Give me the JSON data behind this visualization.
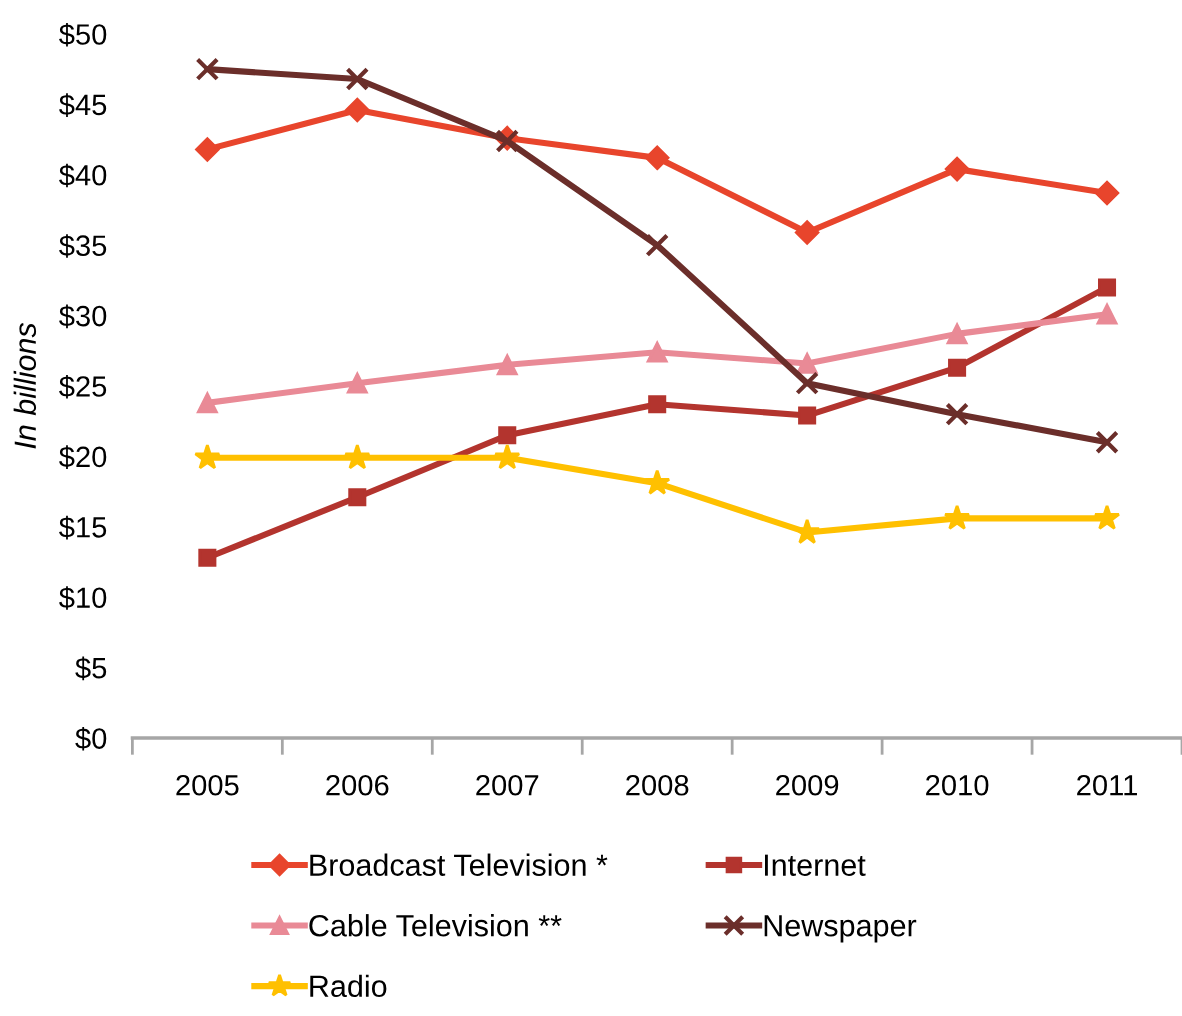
{
  "chart_data": {
    "type": "line",
    "ylabel": "In billions",
    "categories": [
      "2005",
      "2006",
      "2007",
      "2008",
      "2009",
      "2010",
      "2011"
    ],
    "ylim": [
      0,
      50
    ],
    "yticks": [
      {
        "value": 0,
        "label": "$0"
      },
      {
        "value": 5,
        "label": "$5"
      },
      {
        "value": 10,
        "label": "$10"
      },
      {
        "value": 15,
        "label": "$15"
      },
      {
        "value": 20,
        "label": "$20"
      },
      {
        "value": 25,
        "label": "$25"
      },
      {
        "value": 30,
        "label": "$30"
      },
      {
        "value": 35,
        "label": "$35"
      },
      {
        "value": 40,
        "label": "$40"
      },
      {
        "value": 45,
        "label": "$45"
      },
      {
        "value": 50,
        "label": "$50"
      }
    ],
    "legend": "bottom",
    "series": [
      {
        "name": "Broadcast Television *",
        "color": "#e8452c",
        "marker": "diamond",
        "values": [
          41.8,
          44.6,
          42.6,
          41.2,
          35.9,
          40.4,
          38.7
        ]
      },
      {
        "name": "Internet",
        "color": "#b3342e",
        "marker": "square",
        "values": [
          12.8,
          17.1,
          21.5,
          23.7,
          22.9,
          26.3,
          32.0
        ]
      },
      {
        "name": "Cable Television **",
        "color": "#e98a96",
        "marker": "triangle",
        "values": [
          23.8,
          25.2,
          26.5,
          27.4,
          26.6,
          28.7,
          30.1
        ]
      },
      {
        "name": "Newspaper",
        "color": "#6b2e2a",
        "marker": "cross",
        "values": [
          47.5,
          46.8,
          42.4,
          35.0,
          25.2,
          23.0,
          21.0
        ]
      },
      {
        "name": "Radio",
        "color": "#ffc000",
        "marker": "star",
        "values": [
          19.9,
          19.9,
          19.9,
          18.1,
          14.6,
          15.6,
          15.6
        ]
      }
    ]
  }
}
